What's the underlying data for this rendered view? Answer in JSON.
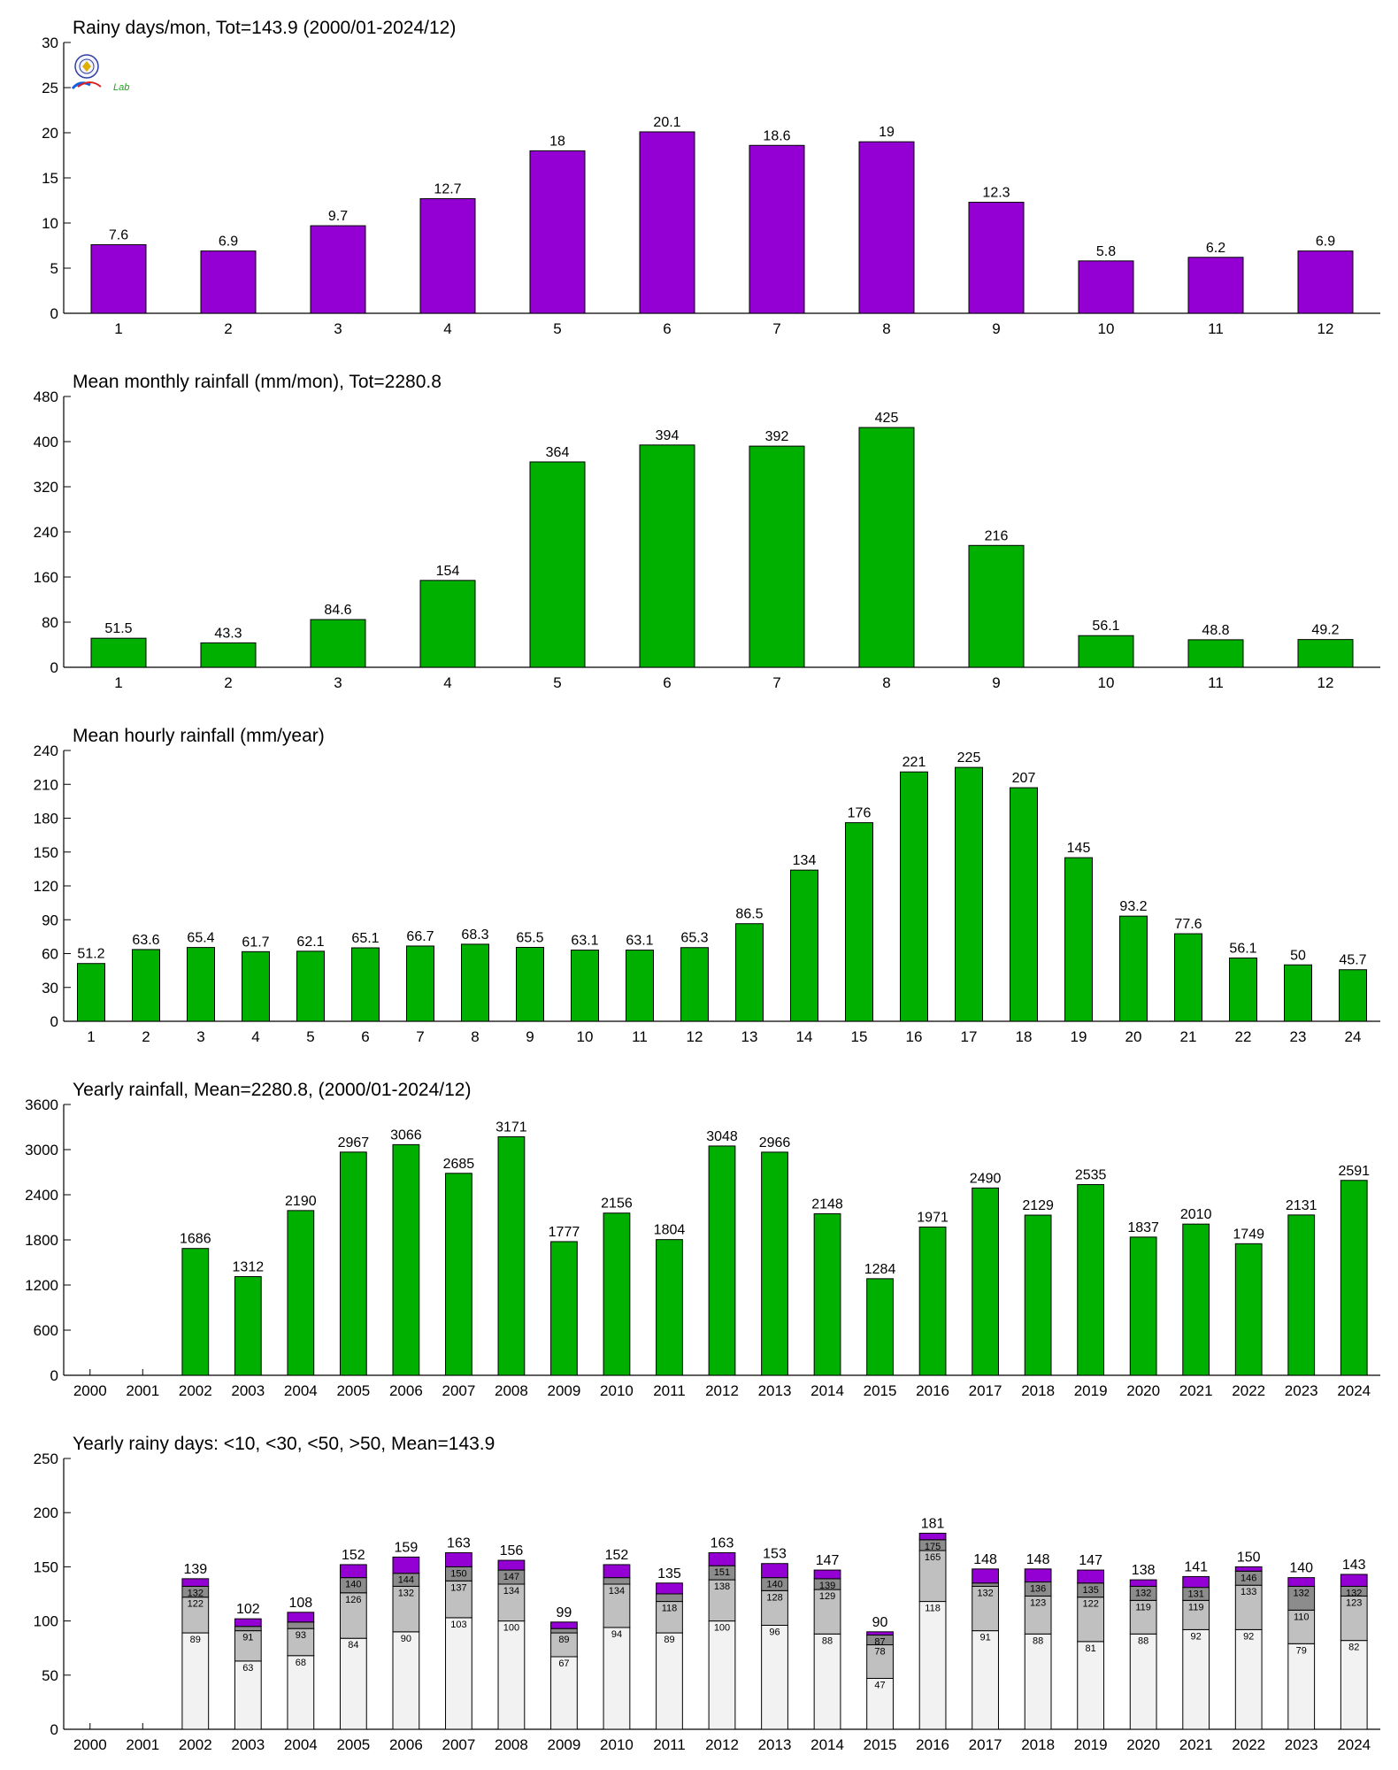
{
  "colors": {
    "purple": "#9400D3",
    "green": "#00B000",
    "gray_light": "#F2F2F2",
    "gray_mid": "#C0C0C0",
    "gray_dark": "#8C8C8C"
  },
  "logo": {
    "text": "Lab"
  },
  "chart_data": [
    {
      "type": "bar",
      "title": "Rainy days/mon, Tot=143.9 (2000/01-2024/12)",
      "categories": [
        "1",
        "2",
        "3",
        "4",
        "5",
        "6",
        "7",
        "8",
        "9",
        "10",
        "11",
        "12"
      ],
      "values": [
        7.6,
        6.9,
        9.7,
        12.7,
        18,
        20.1,
        18.6,
        19,
        12.3,
        5.8,
        6.2,
        6.9
      ],
      "labels": [
        "7.6",
        "6.9",
        "9.7",
        "12.7",
        "18",
        "20.1",
        "18.6",
        "19",
        "12.3",
        "5.8",
        "6.2",
        "6.9"
      ],
      "ylim": [
        0,
        30
      ],
      "yticks": [
        0,
        5,
        10,
        15,
        20,
        25,
        30
      ],
      "color": "purple"
    },
    {
      "type": "bar",
      "title": "Mean monthly rainfall (mm/mon), Tot=2280.8",
      "categories": [
        "1",
        "2",
        "3",
        "4",
        "5",
        "6",
        "7",
        "8",
        "9",
        "10",
        "11",
        "12"
      ],
      "values": [
        51.5,
        43.3,
        84.6,
        154,
        364,
        394,
        392,
        425,
        216,
        56.1,
        48.8,
        49.2
      ],
      "labels": [
        "51.5",
        "43.3",
        "84.6",
        "154",
        "364",
        "394",
        "392",
        "425",
        "216",
        "56.1",
        "48.8",
        "49.2"
      ],
      "ylim": [
        0,
        480
      ],
      "yticks": [
        0,
        80,
        160,
        240,
        320,
        400,
        480
      ],
      "color": "green"
    },
    {
      "type": "bar",
      "title": "Mean hourly rainfall (mm/year)",
      "categories": [
        "1",
        "2",
        "3",
        "4",
        "5",
        "6",
        "7",
        "8",
        "9",
        "10",
        "11",
        "12",
        "13",
        "14",
        "15",
        "16",
        "17",
        "18",
        "19",
        "20",
        "21",
        "22",
        "23",
        "24"
      ],
      "values": [
        51.2,
        63.6,
        65.4,
        61.7,
        62.1,
        65.1,
        66.7,
        68.3,
        65.5,
        63.1,
        63.1,
        65.3,
        86.5,
        134,
        176,
        221,
        225,
        207,
        145,
        93.2,
        77.6,
        56.1,
        50,
        45.7
      ],
      "labels": [
        "51.2",
        "63.6",
        "65.4",
        "61.7",
        "62.1",
        "65.1",
        "66.7",
        "68.3",
        "65.5",
        "63.1",
        "63.1",
        "65.3",
        "86.5",
        "134",
        "176",
        "221",
        "225",
        "207",
        "145",
        "93.2",
        "77.6",
        "56.1",
        "50",
        "45.7"
      ],
      "ylim": [
        0,
        240
      ],
      "yticks": [
        0,
        30,
        60,
        90,
        120,
        150,
        180,
        210,
        240
      ],
      "color": "green"
    },
    {
      "type": "bar",
      "title": "Yearly rainfall, Mean=2280.8, (2000/01-2024/12)",
      "categories": [
        "2000",
        "2001",
        "2002",
        "2003",
        "2004",
        "2005",
        "2006",
        "2007",
        "2008",
        "2009",
        "2010",
        "2011",
        "2012",
        "2013",
        "2014",
        "2015",
        "2016",
        "2017",
        "2018",
        "2019",
        "2020",
        "2021",
        "2022",
        "2023",
        "2024"
      ],
      "values": [
        0,
        0,
        1686,
        1312,
        2190,
        2967,
        3066,
        2685,
        3171,
        1777,
        2156,
        1804,
        3048,
        2966,
        2148,
        1284,
        1971,
        2490,
        2129,
        2535,
        1837,
        2010,
        1749,
        2131,
        2591
      ],
      "labels": [
        "",
        "",
        "1686",
        "1312",
        "2190",
        "2967",
        "3066",
        "2685",
        "3171",
        "1777",
        "2156",
        "1804",
        "3048",
        "2966",
        "2148",
        "1284",
        "1971",
        "2490",
        "2129",
        "2535",
        "1837",
        "2010",
        "1749",
        "2131",
        "2591"
      ],
      "ylim": [
        0,
        3600
      ],
      "yticks": [
        0,
        600,
        1200,
        1800,
        2400,
        3000,
        3600
      ],
      "color": "green"
    },
    {
      "type": "bar",
      "stacked": true,
      "title": "Yearly rainy days: <10, <30, <50, >50, Mean=143.9",
      "categories": [
        "2000",
        "2001",
        "2002",
        "2003",
        "2004",
        "2005",
        "2006",
        "2007",
        "2008",
        "2009",
        "2010",
        "2011",
        "2012",
        "2013",
        "2014",
        "2015",
        "2016",
        "2017",
        "2018",
        "2019",
        "2020",
        "2021",
        "2022",
        "2023",
        "2024"
      ],
      "series": [
        {
          "name": "<10",
          "color": "gray_light",
          "values": [
            0,
            0,
            89,
            63,
            68,
            84,
            90,
            103,
            100,
            67,
            94,
            89,
            100,
            96,
            88,
            47,
            118,
            91,
            88,
            81,
            88,
            92,
            92,
            79,
            82
          ],
          "labels": [
            "",
            "",
            "89",
            "63",
            "68",
            "84",
            "90",
            "103",
            "100",
            "67",
            "94",
            "89",
            "100",
            "96",
            "88",
            "47",
            "118",
            "91",
            "88",
            "81",
            "88",
            "92",
            "92",
            "79",
            "82"
          ]
        },
        {
          "name": "<30",
          "color": "gray_mid",
          "cum": [
            0,
            0,
            122,
            91,
            93,
            126,
            132,
            137,
            134,
            89,
            134,
            118,
            138,
            128,
            129,
            78,
            165,
            132,
            123,
            122,
            119,
            119,
            133,
            110,
            123
          ],
          "labels": [
            "",
            "",
            "122",
            "91",
            "93",
            "126",
            "132",
            "137",
            "134",
            "89",
            "134",
            "118",
            "138",
            "128",
            "129",
            "78",
            "165",
            "132",
            "123",
            "122",
            "119",
            "119",
            "133",
            "110",
            "123"
          ]
        },
        {
          "name": "<50",
          "color": "gray_dark",
          "cum": [
            0,
            0,
            132,
            95,
            99,
            140,
            144,
            150,
            147,
            93,
            140,
            125,
            151,
            140,
            139,
            87,
            175,
            135,
            136,
            135,
            132,
            131,
            146,
            132,
            132
          ],
          "labels": [
            "",
            "",
            "132",
            "",
            "",
            "140",
            "144",
            "150",
            "147",
            "",
            "",
            "",
            "151",
            "140",
            "139",
            "87",
            "175",
            "",
            "136",
            "135",
            "132",
            "131",
            "146",
            "132",
            "132"
          ]
        },
        {
          "name": ">50",
          "color": "purple",
          "cum": [
            0,
            0,
            139,
            102,
            108,
            152,
            159,
            163,
            156,
            99,
            152,
            135,
            163,
            153,
            147,
            90,
            181,
            148,
            148,
            147,
            138,
            141,
            150,
            140,
            143
          ]
        }
      ],
      "totals": [
        "",
        "",
        "139",
        "102",
        "108",
        "152",
        "159",
        "163",
        "156",
        "99",
        "152",
        "135",
        "163",
        "153",
        "147",
        "90",
        "181",
        "148",
        "148",
        "147",
        "138",
        "141",
        "150",
        "140",
        "143"
      ],
      "ylim": [
        0,
        250
      ],
      "yticks": [
        0,
        50,
        100,
        150,
        200,
        250
      ]
    }
  ]
}
